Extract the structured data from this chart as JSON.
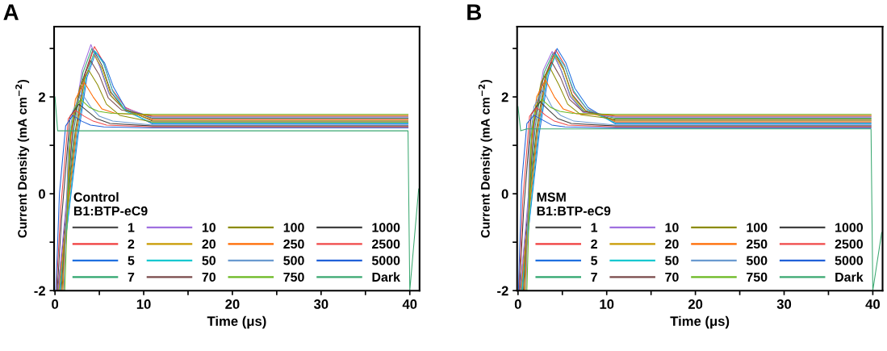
{
  "chart_data": [
    {
      "type": "line",
      "title": "A",
      "xlabel": "Time (μs)",
      "ylabel": "Current Density (mA cm$^{−2}$)",
      "legend_title": "Control\nB1:BTP-eC9",
      "legend": "bottom",
      "grid": false,
      "marker": "none",
      "line_style": "solid",
      "xlim": [
        -0.1,
        41.1
      ],
      "xticks": [
        0,
        {
          "value": 5,
          "label": null
        },
        10,
        {
          "value": 15,
          "label": null
        },
        20,
        {
          "value": 25,
          "label": null
        },
        30,
        {
          "value": 35,
          "label": null
        },
        40
      ],
      "ylim": [
        -2,
        3.45
      ],
      "yticks": [
        -2,
        {
          "value": -1,
          "label": null
        },
        0,
        {
          "value": 1,
          "label": null
        },
        2,
        {
          "value": 3,
          "label": null
        }
      ],
      "series": [
        {
          "name": "1",
          "color": "#4d4d4d",
          "x": [
            0.3,
            2.3,
            3.3,
            4.3,
            5.3,
            6.3,
            7.8,
            11,
            39.8
          ],
          "values": [
            -2,
            1.3,
            2.45,
            2.98,
            2.65,
            2.1,
            1.75,
            1.5,
            1.5
          ]
        },
        {
          "name": "2",
          "color": "#f03c3c",
          "x": [
            0.4,
            2.45,
            3.45,
            4.45,
            5.45,
            6.45,
            7.95,
            11,
            39.8
          ],
          "values": [
            -2,
            1.25,
            2.5,
            3.04,
            2.72,
            2.15,
            1.78,
            1.54,
            1.54
          ]
        },
        {
          "name": "5",
          "color": "#1f6fe0",
          "x": [
            0.5,
            2.6,
            3.6,
            4.6,
            5.6,
            6.6,
            8.1,
            11,
            39.8
          ],
          "values": [
            -2,
            1.2,
            2.4,
            2.92,
            2.7,
            2.2,
            1.72,
            1.44,
            1.44
          ]
        },
        {
          "name": "7",
          "color": "#2ea66e",
          "x": [
            0.6,
            2.15,
            3.15,
            4.15,
            5.15,
            6.15,
            7.65,
            11,
            39.8
          ],
          "values": [
            -2,
            1.35,
            2.5,
            3.0,
            2.6,
            2.05,
            1.76,
            1.56,
            1.56
          ]
        },
        {
          "name": "10",
          "color": "#a070e0",
          "x": [
            0.35,
            2.05,
            3.05,
            4.05,
            5.05,
            6.05,
            7.55,
            11,
            39.8
          ],
          "values": [
            -2,
            1.4,
            2.55,
            3.08,
            2.62,
            2.08,
            1.79,
            1.58,
            1.58
          ]
        },
        {
          "name": "20",
          "color": "#c89a00",
          "x": [
            0.45,
            2.35,
            3.35,
            4.35,
            5.35,
            6.35,
            7.85,
            11,
            39.8
          ],
          "values": [
            -2,
            1.28,
            2.35,
            2.88,
            2.58,
            2.02,
            1.74,
            1.52,
            1.52
          ]
        },
        {
          "name": "50",
          "color": "#17c8d0",
          "x": [
            0.55,
            2.5,
            3.5,
            4.5,
            5.5,
            6.5,
            8.0,
            11,
            39.8
          ],
          "values": [
            -2,
            1.22,
            2.42,
            2.95,
            2.68,
            2.12,
            1.7,
            1.46,
            1.46
          ]
        },
        {
          "name": "70",
          "color": "#7a4a4a",
          "x": [
            0.7,
            2.0,
            3.0,
            4.0,
            5.0,
            6.0,
            7.5,
            11,
            39.8
          ],
          "values": [
            -2,
            1.38,
            2.3,
            2.75,
            2.45,
            1.98,
            1.73,
            1.6,
            1.6
          ]
        },
        {
          "name": "100",
          "color": "#8c8c00",
          "x": [
            0.8,
            1.8,
            2.8,
            3.8,
            4.8,
            5.8,
            7.3,
            11,
            39.8
          ],
          "values": [
            -2,
            1.3,
            2.2,
            2.55,
            2.25,
            1.85,
            1.62,
            1.48,
            1.48
          ]
        },
        {
          "name": "250",
          "color": "#ff6a00",
          "x": [
            0.9,
            1.6,
            2.3,
            3.3,
            4.3,
            5.3,
            6.8,
            11,
            39.8
          ],
          "values": [
            -2,
            0.9,
            1.95,
            2.3,
            2.0,
            1.75,
            1.66,
            1.62,
            1.62
          ]
        },
        {
          "name": "500",
          "color": "#6a9ad0",
          "x": [
            1.0,
            1.5,
            2.0,
            3.0,
            4.0,
            5.0,
            6.5,
            11,
            39.8
          ],
          "values": [
            -2,
            1.0,
            1.7,
            2.08,
            1.8,
            1.6,
            1.5,
            1.42,
            1.42
          ]
        },
        {
          "name": "750",
          "color": "#6ab820",
          "x": [
            1.1,
            1.7,
            2.2,
            2.9,
            3.9,
            4.9,
            6.4,
            11,
            39.8
          ],
          "values": [
            -2,
            1.2,
            1.75,
            1.95,
            1.78,
            1.7,
            1.66,
            1.64,
            1.64
          ]
        },
        {
          "name": "1000",
          "color": "#404040",
          "x": [
            0.25,
            0.75,
            1.7,
            2.7,
            3.7,
            4.7,
            6.2,
            11,
            39.8
          ],
          "values": [
            -2,
            -0.5,
            1.6,
            1.85,
            1.7,
            1.55,
            1.45,
            1.4,
            1.4
          ]
        },
        {
          "name": "2500",
          "color": "#f04848",
          "x": [
            0.15,
            0.65,
            1.5,
            2.3,
            3.3,
            4.3,
            5.8,
            11,
            39.8
          ],
          "values": [
            -2,
            -0.3,
            1.55,
            1.72,
            1.6,
            1.5,
            1.42,
            1.38,
            1.38
          ]
        },
        {
          "name": "5000",
          "color": "#2060d8",
          "x": [
            0.1,
            0.5,
            1.2,
            2.0,
            3.0,
            4.0,
            5.5,
            11,
            39.8
          ],
          "values": [
            -2,
            0.0,
            1.4,
            1.62,
            1.5,
            1.42,
            1.38,
            1.36,
            1.36
          ]
        },
        {
          "name": "Dark",
          "color": "#3aa870",
          "x": [
            0,
            0.3,
            1,
            11,
            39.8,
            40,
            41
          ],
          "values": [
            2.0,
            1.3,
            1.3,
            1.3,
            1.3,
            -2,
            0.1
          ]
        }
      ]
    },
    {
      "type": "line",
      "title": "B",
      "xlabel": "Time (μs)",
      "ylabel": "Current Density (mA cm$^{−2}$)",
      "legend_title": "MSM\nB1:BTP-eC9",
      "legend": "bottom",
      "grid": false,
      "marker": "none",
      "line_style": "solid",
      "xlim": [
        -0.1,
        41.1
      ],
      "xticks": [
        0,
        {
          "value": 5,
          "label": null
        },
        10,
        {
          "value": 15,
          "label": null
        },
        20,
        {
          "value": 25,
          "label": null
        },
        30,
        {
          "value": 35,
          "label": null
        },
        40
      ],
      "ylim": [
        -2,
        3.45
      ],
      "yticks": [
        -2,
        {
          "value": -1,
          "label": null
        },
        0,
        {
          "value": 1,
          "label": null
        },
        2,
        {
          "value": 3,
          "label": null
        }
      ],
      "series": [
        {
          "name": "1",
          "color": "#4d4d4d",
          "x": [
            0.2,
            2.1,
            3.1,
            4.1,
            5.1,
            6.1,
            7.6,
            11,
            39.8
          ],
          "values": [
            -2,
            1.35,
            2.45,
            2.92,
            2.6,
            2.05,
            1.72,
            1.52,
            1.52
          ]
        },
        {
          "name": "2",
          "color": "#f03c3c",
          "x": [
            0.3,
            2.25,
            3.25,
            4.25,
            5.25,
            6.25,
            7.75,
            11,
            39.8
          ],
          "values": [
            -2,
            1.3,
            2.5,
            2.97,
            2.66,
            2.1,
            1.75,
            1.48,
            1.48
          ]
        },
        {
          "name": "5",
          "color": "#1f6fe0",
          "x": [
            0.4,
            2.4,
            3.4,
            4.4,
            5.4,
            6.4,
            7.9,
            11,
            39.8
          ],
          "values": [
            -2,
            1.25,
            2.42,
            3.0,
            2.7,
            2.18,
            1.78,
            1.44,
            1.44
          ]
        },
        {
          "name": "7",
          "color": "#2ea66e",
          "x": [
            0.5,
            1.95,
            2.95,
            3.95,
            4.95,
            5.95,
            7.45,
            11,
            39.8
          ],
          "values": [
            -2,
            1.4,
            2.5,
            2.9,
            2.52,
            2.0,
            1.7,
            1.56,
            1.56
          ]
        },
        {
          "name": "10",
          "color": "#a070e0",
          "x": [
            0.25,
            1.85,
            2.85,
            3.85,
            4.85,
            5.85,
            7.35,
            11,
            39.8
          ],
          "values": [
            -2,
            1.42,
            2.55,
            2.94,
            2.55,
            2.02,
            1.68,
            1.58,
            1.58
          ]
        },
        {
          "name": "20",
          "color": "#c89a00",
          "x": [
            0.35,
            2.15,
            3.15,
            4.15,
            5.15,
            6.15,
            7.65,
            11,
            39.8
          ],
          "values": [
            -2,
            1.32,
            2.4,
            2.86,
            2.55,
            2.0,
            1.7,
            1.5,
            1.5
          ]
        },
        {
          "name": "50",
          "color": "#17c8d0",
          "x": [
            0.45,
            2.3,
            3.3,
            4.3,
            5.3,
            6.3,
            7.8,
            11,
            39.8
          ],
          "values": [
            -2,
            1.28,
            2.45,
            2.88,
            2.62,
            2.12,
            1.74,
            1.46,
            1.46
          ]
        },
        {
          "name": "70",
          "color": "#7a4a4a",
          "x": [
            0.6,
            1.8,
            2.8,
            3.8,
            4.8,
            5.8,
            7.3,
            11,
            39.8
          ],
          "values": [
            -2,
            1.45,
            2.35,
            2.72,
            2.4,
            1.95,
            1.7,
            1.6,
            1.6
          ]
        },
        {
          "name": "100",
          "color": "#8c8c00",
          "x": [
            0.7,
            1.6,
            2.6,
            3.6,
            4.6,
            5.6,
            7.1,
            11,
            39.8
          ],
          "values": [
            -2,
            1.35,
            2.3,
            2.6,
            2.25,
            1.85,
            1.63,
            1.54,
            1.54
          ]
        },
        {
          "name": "250",
          "color": "#ff6a00",
          "x": [
            0.8,
            1.4,
            2.1,
            3.1,
            4.1,
            5.1,
            6.6,
            11,
            39.8
          ],
          "values": [
            -2,
            0.9,
            2.0,
            2.35,
            2.0,
            1.75,
            1.65,
            1.62,
            1.62
          ]
        },
        {
          "name": "500",
          "color": "#6a9ad0",
          "x": [
            0.9,
            1.3,
            1.8,
            2.8,
            3.8,
            4.8,
            6.3,
            11,
            39.8
          ],
          "values": [
            -2,
            1.0,
            1.8,
            2.15,
            1.8,
            1.62,
            1.5,
            1.42,
            1.42
          ]
        },
        {
          "name": "750",
          "color": "#6ab820",
          "x": [
            1.0,
            1.5,
            2.0,
            2.7,
            3.7,
            4.7,
            6.2,
            11,
            39.8
          ],
          "values": [
            -2,
            1.2,
            1.8,
            1.95,
            1.78,
            1.7,
            1.66,
            1.64,
            1.64
          ]
        },
        {
          "name": "1000",
          "color": "#404040",
          "x": [
            0.15,
            0.65,
            1.5,
            2.5,
            3.5,
            4.5,
            6.0,
            11,
            39.8
          ],
          "values": [
            -2,
            -0.3,
            1.65,
            1.9,
            1.72,
            1.55,
            1.45,
            1.4,
            1.4
          ]
        },
        {
          "name": "2500",
          "color": "#f04848",
          "x": [
            0.1,
            0.55,
            1.3,
            2.1,
            3.1,
            4.1,
            5.6,
            11,
            39.8
          ],
          "values": [
            -2,
            -0.1,
            1.6,
            1.78,
            1.62,
            1.5,
            1.42,
            1.38,
            1.38
          ]
        },
        {
          "name": "5000",
          "color": "#2060d8",
          "x": [
            0.05,
            0.4,
            1.0,
            1.8,
            2.8,
            3.8,
            5.3,
            11,
            39.8
          ],
          "values": [
            -2,
            0.2,
            1.45,
            1.62,
            1.52,
            1.42,
            1.38,
            1.36,
            1.36
          ]
        },
        {
          "name": "Dark",
          "color": "#3aa870",
          "x": [
            0,
            0.3,
            1,
            11,
            39.8,
            40,
            41
          ],
          "values": [
            1.8,
            1.3,
            1.34,
            1.34,
            1.34,
            -2,
            -0.8
          ]
        }
      ]
    }
  ]
}
